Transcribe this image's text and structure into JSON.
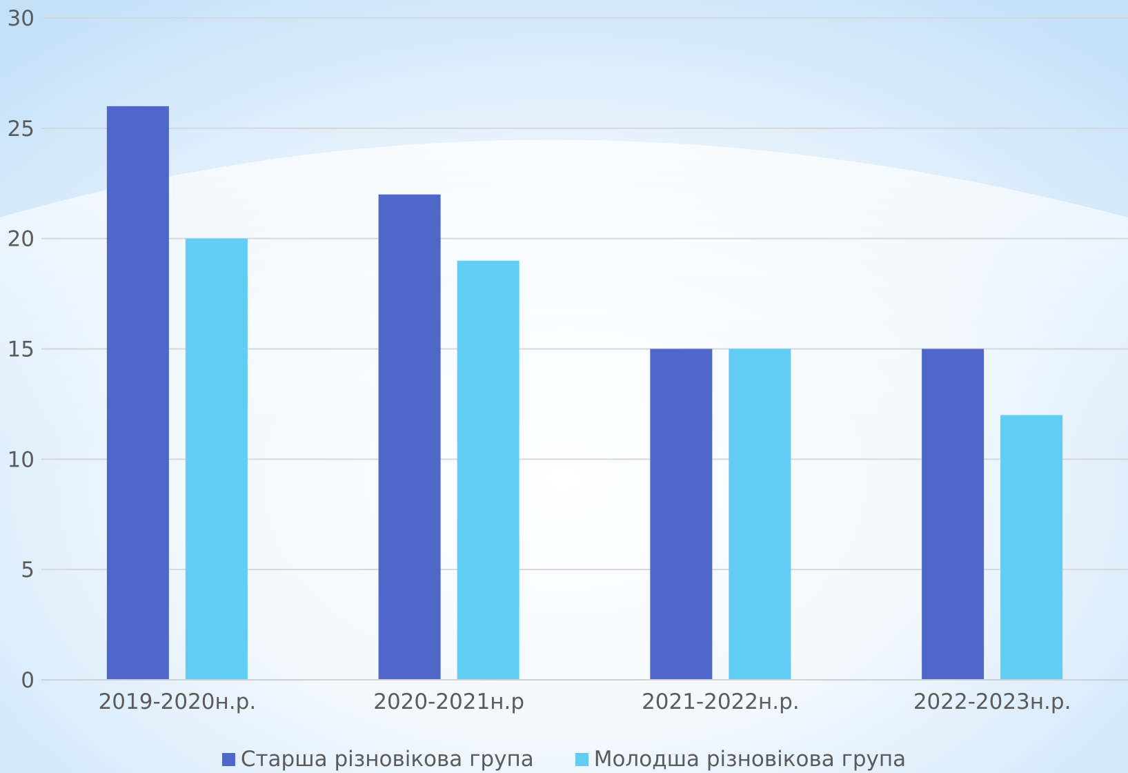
{
  "chart_data": {
    "type": "bar",
    "title": "",
    "xlabel": "",
    "ylabel": "",
    "categories": [
      "2019-2020н.р.",
      "2020-2021н.р",
      "2021-2022н.р.",
      "2022-2023н.р."
    ],
    "series": [
      {
        "name": "Старша різновікова група",
        "values": [
          26,
          22,
          15,
          15
        ],
        "color": "#4f67c9"
      },
      {
        "name": "Молодша різновікова група",
        "values": [
          20,
          19,
          15,
          12
        ],
        "color": "#62cdf2"
      }
    ],
    "ylim": [
      0,
      30
    ],
    "yticks": [
      "0",
      "5",
      "10",
      "15",
      "20",
      "25",
      "30"
    ],
    "grid": true,
    "legend_position": "bottom"
  }
}
